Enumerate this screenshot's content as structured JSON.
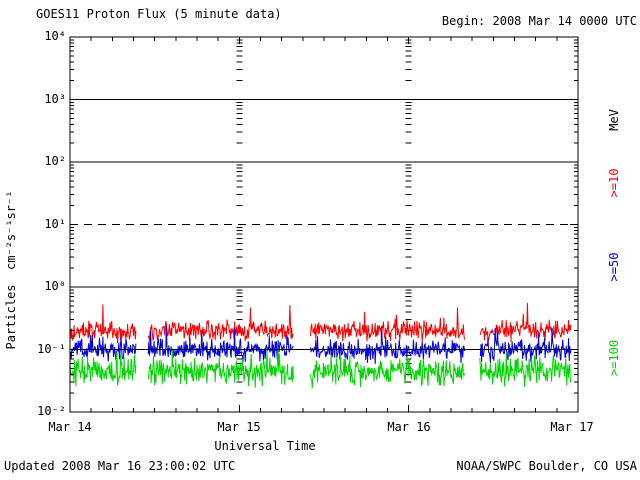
{
  "header": {
    "title": "GOES11 Proton Flux (5 minute data)",
    "begin_label": "Begin: 2008 Mar 14 0000 UTC"
  },
  "footer": {
    "updated": "Updated 2008 Mar 16 23:00:02 UTC",
    "credit": "NOAA/SWPC Boulder, CO USA"
  },
  "chart_data": {
    "type": "line",
    "title": "GOES11 Proton Flux (5 minute data)",
    "xlabel": "Universal Time",
    "ylabel": "Particles  cm⁻²s⁻¹sr⁻¹",
    "unit_label": "MeV",
    "x_tick_labels": [
      "Mar 14",
      "Mar 15",
      "Mar 16",
      "Mar 17"
    ],
    "y_tick_labels": [
      "10⁴",
      "10³",
      "10²",
      "10¹",
      "10⁰",
      "10⁻¹",
      "10⁻²"
    ],
    "y_log_range": [
      -2,
      4
    ],
    "x_range_days": 3,
    "cadence_minutes": 5,
    "grid": {
      "solid_decades": [
        3,
        2,
        0,
        -1
      ],
      "dashed_decades": [
        1
      ],
      "interior_day_tick_columns": [
        1,
        2
      ]
    },
    "series": [
      {
        "name": ">=10",
        "color": "#ff0000",
        "median_flux": 0.2,
        "typical_range": [
          0.13,
          0.4
        ],
        "peak": 0.62
      },
      {
        "name": ">=50",
        "color": "#0000ee",
        "median_flux": 0.1,
        "typical_range": [
          0.06,
          0.2
        ],
        "peak": 0.24
      },
      {
        "name": ">=100",
        "color": "#00d500",
        "median_flux": 0.045,
        "typical_range": [
          0.02,
          0.09
        ],
        "peak": 0.11
      }
    ],
    "data_gaps_days": [
      [
        0.39,
        0.46
      ],
      [
        1.32,
        1.42
      ],
      [
        2.33,
        2.42
      ]
    ],
    "data_end_day": 2.958,
    "legend_position": "right-rotated"
  }
}
